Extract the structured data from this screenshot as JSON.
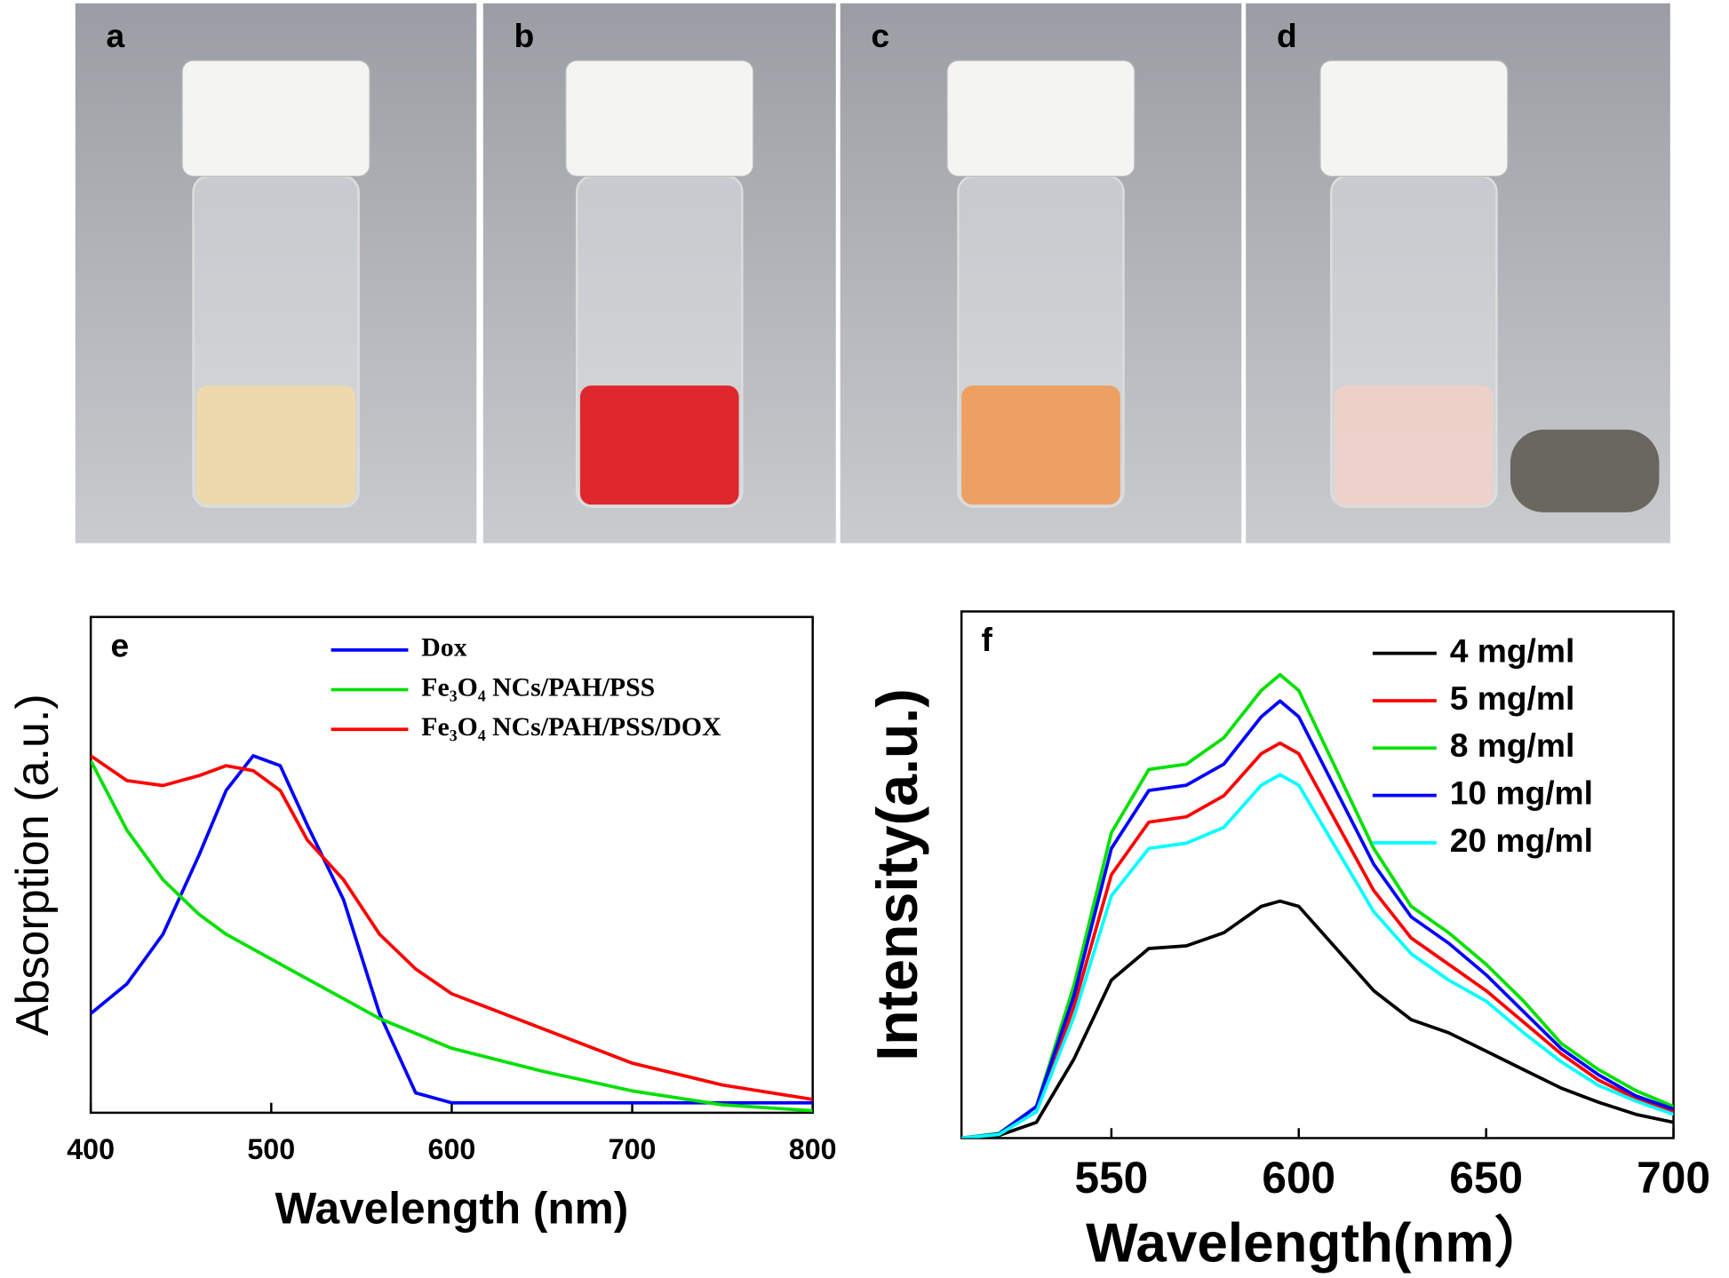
{
  "panels": {
    "labels": [
      "a",
      "b",
      "c",
      "d"
    ]
  },
  "chart_data": [
    {
      "type": "line",
      "panel_label": "e",
      "xlabel": "Wavelength (nm)",
      "ylabel": "Absorption (a.u.)",
      "x": [
        400,
        420,
        440,
        460,
        475,
        490,
        505,
        520,
        540,
        560,
        580,
        600,
        650,
        700,
        750,
        800
      ],
      "series": [
        {
          "name": "Dox",
          "color": "#0000ff",
          "values": [
            0.2,
            0.26,
            0.36,
            0.52,
            0.65,
            0.72,
            0.7,
            0.58,
            0.43,
            0.2,
            0.04,
            0.02,
            0.02,
            0.02,
            0.02,
            0.02
          ]
        },
        {
          "name": "Fe₃O₄ NCs/PAH/PSS",
          "color": "#00e000",
          "values": [
            0.71,
            0.57,
            0.47,
            0.4,
            0.36,
            0.33,
            0.3,
            0.27,
            0.23,
            0.19,
            0.16,
            0.13,
            0.084,
            0.044,
            0.016,
            0.004
          ]
        },
        {
          "name": "Fe₃O₄ NCs/PAH/PSS/DOX",
          "color": "#ff0000",
          "values": [
            0.72,
            0.67,
            0.66,
            0.68,
            0.7,
            0.69,
            0.65,
            0.55,
            0.47,
            0.36,
            0.29,
            0.24,
            0.17,
            0.1,
            0.056,
            0.027
          ]
        }
      ],
      "xlim": [
        400,
        800
      ],
      "xticks": [
        400,
        500,
        600,
        700,
        800
      ],
      "ylim": [
        0,
        1
      ],
      "legend": "top"
    },
    {
      "type": "line",
      "panel_label": "f",
      "xlabel": "Wavelength(nm）",
      "ylabel": "Intensity(a.u.)",
      "x": [
        510,
        520,
        530,
        540,
        550,
        560,
        570,
        580,
        590,
        595,
        600,
        610,
        620,
        630,
        640,
        650,
        660,
        670,
        680,
        690,
        700
      ],
      "series": [
        {
          "name": "4 mg/ml",
          "color": "#000000",
          "values": [
            0,
            0.005,
            0.03,
            0.15,
            0.3,
            0.36,
            0.365,
            0.39,
            0.44,
            0.45,
            0.44,
            0.36,
            0.28,
            0.225,
            0.2,
            0.165,
            0.13,
            0.095,
            0.068,
            0.045,
            0.03
          ]
        },
        {
          "name": "5 mg/ml",
          "color": "#ff0000",
          "values": [
            0,
            0.008,
            0.05,
            0.25,
            0.5,
            0.6,
            0.61,
            0.65,
            0.73,
            0.75,
            0.73,
            0.6,
            0.47,
            0.38,
            0.33,
            0.28,
            0.22,
            0.16,
            0.11,
            0.075,
            0.05
          ]
        },
        {
          "name": "8 mg/ml",
          "color": "#00e000",
          "values": [
            0,
            0.009,
            0.06,
            0.29,
            0.58,
            0.7,
            0.71,
            0.76,
            0.85,
            0.88,
            0.85,
            0.7,
            0.55,
            0.44,
            0.39,
            0.33,
            0.26,
            0.18,
            0.13,
            0.09,
            0.06
          ]
        },
        {
          "name": "10 mg/ml",
          "color": "#0000ff",
          "values": [
            0,
            0.008,
            0.06,
            0.27,
            0.55,
            0.66,
            0.67,
            0.71,
            0.8,
            0.83,
            0.8,
            0.66,
            0.52,
            0.42,
            0.37,
            0.31,
            0.24,
            0.17,
            0.12,
            0.08,
            0.055
          ]
        },
        {
          "name": "20 mg/ml",
          "color": "#00ffff",
          "values": [
            0,
            0.007,
            0.05,
            0.23,
            0.46,
            0.55,
            0.56,
            0.59,
            0.67,
            0.69,
            0.67,
            0.55,
            0.43,
            0.35,
            0.3,
            0.26,
            0.2,
            0.145,
            0.1,
            0.07,
            0.045
          ]
        }
      ],
      "xlim": [
        510,
        700
      ],
      "xticks": [
        550,
        600,
        650,
        700
      ],
      "ylim": [
        0,
        1
      ],
      "legend": "upper right"
    }
  ]
}
